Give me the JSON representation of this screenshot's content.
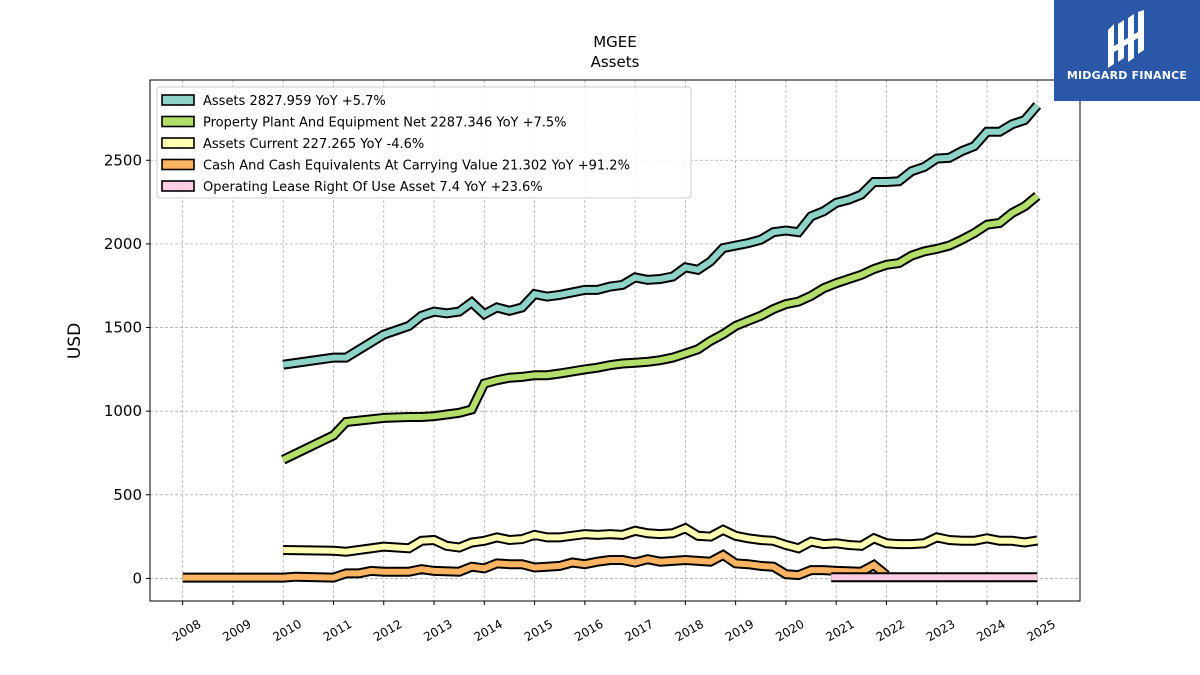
{
  "brand": {
    "name": "MIDGARD FINANCE",
    "logo_icon": "midgard-finance-logo-icon",
    "color": "#2a57a8"
  },
  "chart_data": {
    "type": "line",
    "title": "MGEE",
    "subtitle": "Assets",
    "xlabel": "",
    "ylabel": "USD",
    "xlim": [
      2007.35,
      2025.85
    ],
    "ylim": [
      -135,
      2980
    ],
    "grid": true,
    "legend_position": "top-left",
    "x_ticks": [
      "2008",
      "2009",
      "2010",
      "2011",
      "2012",
      "2013",
      "2014",
      "2015",
      "2016",
      "2017",
      "2018",
      "2019",
      "2020",
      "2021",
      "2022",
      "2023",
      "2024",
      "2025"
    ],
    "y_ticks": [
      0,
      500,
      1000,
      1500,
      2000,
      2500
    ],
    "series": [
      {
        "name": "Assets",
        "legend": "Assets  2827.959 YoY +5.7%",
        "color": "#8dd3c7",
        "x": [
          2010.0,
          2011.0,
          2011.25,
          2012.0,
          2012.5,
          2012.75,
          2013.0,
          2013.25,
          2013.5,
          2013.75,
          2014.0,
          2014.25,
          2014.5,
          2014.75,
          2015.0,
          2015.25,
          2015.5,
          2016.0,
          2016.25,
          2016.5,
          2016.75,
          2017.0,
          2017.25,
          2017.5,
          2017.75,
          2018.0,
          2018.25,
          2018.5,
          2018.75,
          2019.0,
          2019.25,
          2019.5,
          2019.75,
          2020.0,
          2020.25,
          2020.5,
          2020.75,
          2021.0,
          2021.25,
          2021.5,
          2021.75,
          2022.0,
          2022.25,
          2022.5,
          2022.75,
          2023.0,
          2023.25,
          2023.5,
          2023.75,
          2024.0,
          2024.25,
          2024.5,
          2024.75,
          2025.0
        ],
        "y": [
          1278,
          1320,
          1320,
          1458,
          1510,
          1570,
          1595,
          1585,
          1595,
          1650,
          1580,
          1620,
          1600,
          1620,
          1700,
          1685,
          1695,
          1725,
          1725,
          1745,
          1755,
          1800,
          1785,
          1790,
          1805,
          1860,
          1845,
          1895,
          1975,
          1990,
          2005,
          2025,
          2070,
          2080,
          2070,
          2165,
          2195,
          2245,
          2265,
          2295,
          2370,
          2370,
          2375,
          2435,
          2460,
          2510,
          2515,
          2555,
          2585,
          2670,
          2670,
          2715,
          2740,
          2828
        ]
      },
      {
        "name": "Property Plant And Equipment Net",
        "legend": "Property Plant And Equipment Net  2287.346 YoY +7.5%",
        "color": "#b3de69",
        "x": [
          2010.0,
          2011.0,
          2011.25,
          2012.0,
          2012.5,
          2012.75,
          2013.0,
          2013.25,
          2013.5,
          2013.75,
          2014.0,
          2014.25,
          2014.5,
          2014.75,
          2015.0,
          2015.25,
          2015.5,
          2016.0,
          2016.25,
          2016.5,
          2016.75,
          2017.0,
          2017.25,
          2017.5,
          2017.75,
          2018.0,
          2018.25,
          2018.5,
          2018.75,
          2019.0,
          2019.25,
          2019.5,
          2019.75,
          2020.0,
          2020.25,
          2020.5,
          2020.75,
          2021.0,
          2021.25,
          2021.5,
          2021.75,
          2022.0,
          2022.25,
          2022.5,
          2022.75,
          2023.0,
          2023.25,
          2023.5,
          2023.75,
          2024.0,
          2024.25,
          2024.5,
          2024.75,
          2025.0
        ],
        "y": [
          710,
          855,
          935,
          960,
          965,
          965,
          970,
          980,
          990,
          1010,
          1165,
          1185,
          1200,
          1205,
          1215,
          1215,
          1225,
          1250,
          1260,
          1275,
          1285,
          1290,
          1295,
          1305,
          1320,
          1345,
          1370,
          1420,
          1460,
          1510,
          1540,
          1570,
          1610,
          1640,
          1655,
          1690,
          1735,
          1765,
          1790,
          1815,
          1850,
          1875,
          1885,
          1930,
          1955,
          1970,
          1990,
          2025,
          2065,
          2115,
          2125,
          2185,
          2225,
          2287
        ]
      },
      {
        "name": "Assets Current",
        "legend": "Assets Current  227.265 YoY -4.6%",
        "color": "#ffffb3",
        "x": [
          2010.0,
          2011.0,
          2011.25,
          2012.0,
          2012.5,
          2012.75,
          2013.0,
          2013.25,
          2013.5,
          2013.75,
          2014.0,
          2014.25,
          2014.5,
          2014.75,
          2015.0,
          2015.25,
          2015.5,
          2016.0,
          2016.25,
          2016.5,
          2016.75,
          2017.0,
          2017.25,
          2017.5,
          2017.75,
          2018.0,
          2018.25,
          2018.5,
          2018.75,
          2019.0,
          2019.25,
          2019.5,
          2019.75,
          2020.0,
          2020.25,
          2020.5,
          2020.75,
          2021.0,
          2021.25,
          2021.5,
          2021.75,
          2022.0,
          2022.25,
          2022.5,
          2022.75,
          2023.0,
          2023.25,
          2023.5,
          2023.75,
          2024.0,
          2024.25,
          2024.5,
          2024.75,
          2025.0
        ],
        "y": [
          170,
          165,
          160,
          190,
          180,
          225,
          230,
          195,
          185,
          215,
          225,
          245,
          230,
          235,
          260,
          245,
          245,
          265,
          260,
          265,
          260,
          285,
          270,
          265,
          270,
          300,
          255,
          250,
          290,
          255,
          240,
          230,
          225,
          200,
          180,
          220,
          205,
          210,
          200,
          195,
          240,
          210,
          205,
          205,
          210,
          245,
          230,
          225,
          225,
          240,
          225,
          225,
          215,
          227
        ]
      },
      {
        "name": "Cash And Cash Equivalents At Carrying Value",
        "legend": "Cash And Cash Equivalents At Carrying Value  21.302 YoY +91.2%",
        "color": "#fdb462",
        "x": [
          2008.0,
          2009.0,
          2010.0,
          2010.25,
          2011.0,
          2011.25,
          2011.5,
          2011.75,
          2012.0,
          2012.5,
          2012.75,
          2013.0,
          2013.5,
          2013.75,
          2014.0,
          2014.25,
          2014.5,
          2014.75,
          2015.0,
          2015.25,
          2015.5,
          2015.75,
          2016.0,
          2016.25,
          2016.5,
          2016.75,
          2017.0,
          2017.25,
          2017.5,
          2017.75,
          2018.0,
          2018.5,
          2018.75,
          2019.0,
          2019.25,
          2019.5,
          2019.75,
          2020.0,
          2020.25,
          2020.5,
          2020.75,
          2021.0,
          2021.5,
          2021.75,
          2022.0
        ],
        "y": [
          5,
          5,
          5,
          10,
          5,
          30,
          30,
          45,
          40,
          40,
          55,
          45,
          40,
          70,
          60,
          90,
          85,
          85,
          65,
          70,
          75,
          95,
          85,
          100,
          110,
          110,
          95,
          115,
          100,
          105,
          110,
          100,
          140,
          90,
          85,
          75,
          70,
          25,
          20,
          50,
          50,
          45,
          40,
          80,
          20
        ]
      },
      {
        "name": "Operating Lease Right Of Use Asset",
        "legend": "Operating Lease Right Of Use Asset  7.4 YoY +23.6%",
        "color": "#fccde5",
        "x": [
          2020.9,
          2025.0
        ],
        "y": [
          7,
          7
        ]
      }
    ]
  }
}
